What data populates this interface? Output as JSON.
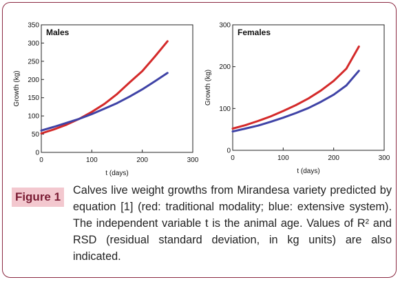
{
  "chart_data": [
    {
      "type": "line",
      "title": "Males",
      "xlabel": "t (days)",
      "ylabel": "Growth (kg)",
      "xlim": [
        0,
        300
      ],
      "ylim": [
        0,
        350
      ],
      "xticks": [
        "0",
        "100",
        "200",
        "300"
      ],
      "yticks": [
        "0",
        "50",
        "100",
        "150",
        "200",
        "250",
        "300",
        "350"
      ],
      "grid": false,
      "series": [
        {
          "color": "#d42a2a",
          "x": [
            0,
            25,
            50,
            75,
            100,
            125,
            150,
            175,
            200,
            225,
            250
          ],
          "y": [
            52,
            63,
            76,
            92,
            111,
            133,
            160,
            192,
            223,
            263,
            305
          ]
        },
        {
          "color": "#3f43a6",
          "x": [
            0,
            25,
            50,
            75,
            100,
            125,
            150,
            175,
            200,
            225,
            250
          ],
          "y": [
            60,
            70,
            81,
            92,
            105,
            120,
            135,
            153,
            173,
            195,
            218
          ]
        }
      ]
    },
    {
      "type": "line",
      "title": "Females",
      "xlabel": "t (days)",
      "ylabel": "Growth (kg)",
      "xlim": [
        0,
        300
      ],
      "ylim": [
        0,
        300
      ],
      "xticks": [
        "0",
        "100",
        "200",
        "300"
      ],
      "yticks": [
        "0",
        "100",
        "200",
        "300"
      ],
      "grid": false,
      "series": [
        {
          "color": "#d42a2a",
          "x": [
            0,
            25,
            50,
            75,
            100,
            125,
            150,
            175,
            200,
            225,
            250
          ],
          "y": [
            52,
            60,
            70,
            81,
            94,
            108,
            124,
            143,
            166,
            195,
            248
          ]
        },
        {
          "color": "#3f43a6",
          "x": [
            0,
            25,
            50,
            75,
            100,
            125,
            150,
            175,
            200,
            225,
            250
          ],
          "y": [
            45,
            52,
            59,
            68,
            78,
            89,
            101,
            116,
            133,
            155,
            190
          ]
        }
      ]
    }
  ],
  "figure_label": "Figure 1",
  "caption": "Calves live weight growths from Mirandesa variety predicted by equation [1] (red: traditional modality; blue: extensive system). The independent variable t is the animal age. Values of R² and RSD (residual standard deviation, in kg units) are also indicated."
}
